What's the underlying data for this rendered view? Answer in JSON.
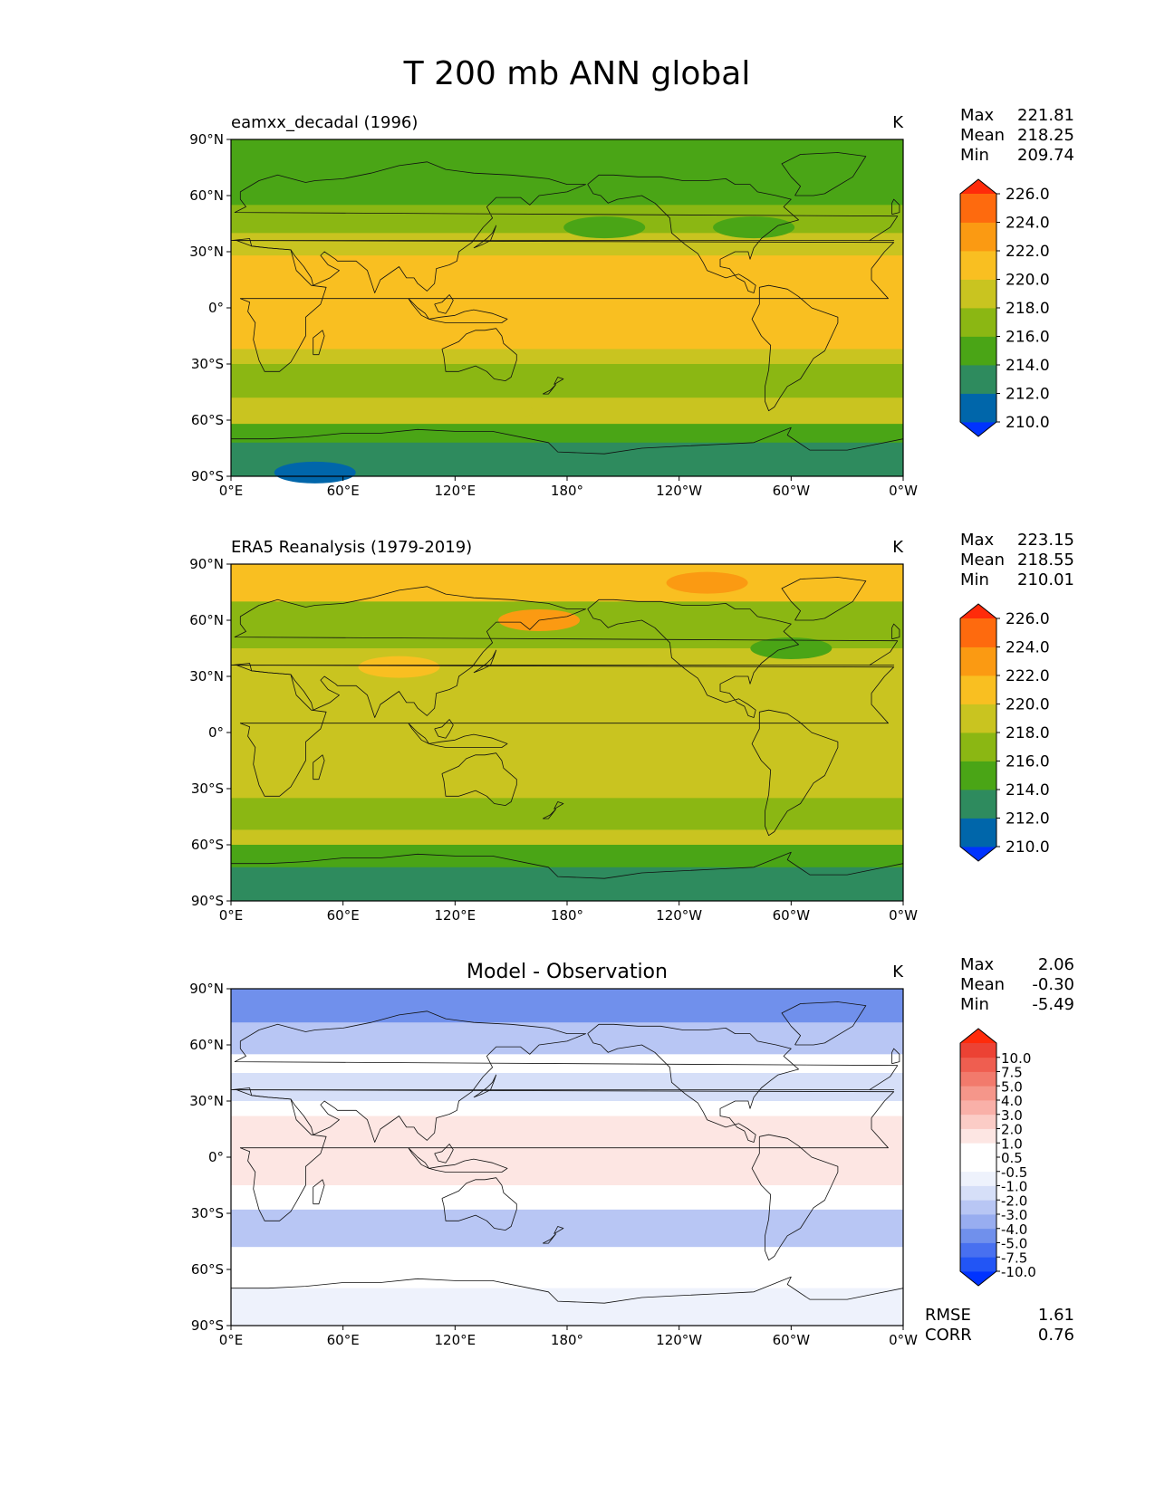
{
  "figure": {
    "title": "T 200 mb ANN global"
  },
  "axes": {
    "lat_labels": [
      "90°N",
      "60°N",
      "30°N",
      "0°",
      "30°S",
      "60°S",
      "90°S"
    ],
    "lon_labels": [
      "0°E",
      "60°E",
      "120°E",
      "180°",
      "120°W",
      "60°W",
      "0°W"
    ]
  },
  "panels": [
    {
      "id": "model",
      "title": "eamxx_decadal (1996)",
      "units": "K",
      "stats": [
        {
          "label": "Max",
          "value": "221.81"
        },
        {
          "label": "Mean",
          "value": "218.25"
        },
        {
          "label": "Min",
          "value": "209.74"
        }
      ]
    },
    {
      "id": "obs",
      "title": "ERA5 Reanalysis (1979-2019)",
      "units": "K",
      "stats": [
        {
          "label": "Max",
          "value": "223.15"
        },
        {
          "label": "Mean",
          "value": "218.55"
        },
        {
          "label": "Min",
          "value": "210.01"
        }
      ]
    },
    {
      "id": "diff",
      "title": "Model - Observation",
      "units": "K",
      "stats": [
        {
          "label": "Max",
          "value": "2.06"
        },
        {
          "label": "Mean",
          "value": "-0.30"
        },
        {
          "label": "Min",
          "value": "-5.49"
        }
      ],
      "metrics": [
        {
          "label": "RMSE",
          "value": "1.61"
        },
        {
          "label": "CORR",
          "value": "0.76"
        }
      ]
    }
  ],
  "colorbars": {
    "abs": {
      "colors": [
        "#0033ff",
        "#0066aa",
        "#2e8b5e",
        "#4aa516",
        "#8bb713",
        "#c9c420",
        "#f9bf21",
        "#fb9a12",
        "#fe6a0e",
        "#ff2b0a"
      ],
      "tick_labels": [
        "210.0",
        "212.0",
        "214.0",
        "216.0",
        "218.0",
        "220.0",
        "222.0",
        "224.0",
        "226.0"
      ]
    },
    "diff": {
      "colors": [
        "#0033ff",
        "#2255f5",
        "#4870f0",
        "#7090ec",
        "#98adf0",
        "#b8c6f4",
        "#d6dff8",
        "#eef2fc",
        "#ffffff",
        "#ffffff",
        "#fde6e3",
        "#fbccc6",
        "#f9b0a8",
        "#f5968a",
        "#f27a6c",
        "#ef5e50",
        "#ec4234",
        "#ff2b0a"
      ],
      "tick_labels": [
        "-10.0",
        "-7.5",
        "-5.0",
        "-4.0",
        "-3.0",
        "-2.0",
        "-1.0",
        "-0.5",
        "0.5",
        "1.0",
        "2.0",
        "3.0",
        "4.0",
        "5.0",
        "7.5",
        "10.0"
      ]
    }
  },
  "chart_data": [
    {
      "type": "heatmap",
      "title": "eamxx_decadal (1996)",
      "variable": "T 200 mb ANN global",
      "units": "K",
      "x_range": [
        0,
        360
      ],
      "y_range": [
        -90,
        90
      ],
      "levels": [
        210,
        212,
        214,
        216,
        218,
        220,
        222,
        224,
        226
      ],
      "zonal_mean_bands": [
        {
          "lat": [
            75,
            90
          ],
          "value": 215
        },
        {
          "lat": [
            55,
            75
          ],
          "value": 215
        },
        {
          "lat": [
            40,
            55
          ],
          "value": 217
        },
        {
          "lat": [
            28,
            40
          ],
          "value": 219
        },
        {
          "lat": [
            -22,
            28
          ],
          "value": 221
        },
        {
          "lat": [
            -30,
            -22
          ],
          "value": 219
        },
        {
          "lat": [
            -48,
            -30
          ],
          "value": 217
        },
        {
          "lat": [
            -62,
            -48
          ],
          "value": 219
        },
        {
          "lat": [
            -72,
            -62
          ],
          "value": 215
        },
        {
          "lat": [
            -90,
            -72
          ],
          "value": 212
        }
      ],
      "anomalies": [
        {
          "lon": 200,
          "lat": 43,
          "value": 215,
          "note": "N. Pacific minimum"
        },
        {
          "lon": 280,
          "lat": 43,
          "value": 215,
          "note": "N. Atlantic minimum"
        },
        {
          "lon": 45,
          "lat": -88,
          "value": 210,
          "note": "Antarctic minimum"
        },
        {
          "lon": 140,
          "lat": -55,
          "value": 219,
          "note": "Southern Ocean warm band"
        }
      ]
    },
    {
      "type": "heatmap",
      "title": "ERA5 Reanalysis (1979-2019)",
      "variable": "T 200 mb ANN global",
      "units": "K",
      "x_range": [
        0,
        360
      ],
      "y_range": [
        -90,
        90
      ],
      "levels": [
        210,
        212,
        214,
        216,
        218,
        220,
        222,
        224,
        226
      ],
      "zonal_mean_bands": [
        {
          "lat": [
            70,
            90
          ],
          "value": 221
        },
        {
          "lat": [
            45,
            70
          ],
          "value": 217
        },
        {
          "lat": [
            30,
            45
          ],
          "value": 219
        },
        {
          "lat": [
            -20,
            30
          ],
          "value": 219
        },
        {
          "lat": [
            -35,
            -20
          ],
          "value": 219
        },
        {
          "lat": [
            -52,
            -35
          ],
          "value": 217
        },
        {
          "lat": [
            -60,
            -52
          ],
          "value": 219
        },
        {
          "lat": [
            -72,
            -60
          ],
          "value": 215
        },
        {
          "lat": [
            -90,
            -72
          ],
          "value": 213
        }
      ],
      "anomalies": [
        {
          "lon": 255,
          "lat": 80,
          "value": 223,
          "note": "Arctic Canada maximum"
        },
        {
          "lon": 165,
          "lat": 60,
          "value": 223,
          "note": "Bering maximum"
        },
        {
          "lon": 90,
          "lat": 35,
          "value": 221,
          "note": "Tibetan plateau warm"
        },
        {
          "lon": 300,
          "lat": 45,
          "value": 215,
          "note": "N. Atlantic minimum"
        }
      ]
    },
    {
      "type": "heatmap",
      "title": "Model - Observation",
      "units": "K",
      "x_range": [
        0,
        360
      ],
      "y_range": [
        -90,
        90
      ],
      "levels": [
        -10,
        -7.5,
        -5,
        -4,
        -3,
        -2,
        -1,
        -0.5,
        0.5,
        1,
        2,
        3,
        4,
        5,
        7.5,
        10
      ],
      "zonal_mean_bands": [
        {
          "lat": [
            72,
            90
          ],
          "value": -4.5
        },
        {
          "lat": [
            55,
            72
          ],
          "value": -2.5
        },
        {
          "lat": [
            45,
            55
          ],
          "value": 0
        },
        {
          "lat": [
            30,
            45
          ],
          "value": -1.5
        },
        {
          "lat": [
            22,
            30
          ],
          "value": 0
        },
        {
          "lat": [
            -15,
            22
          ],
          "value": 1.5
        },
        {
          "lat": [
            -28,
            -15
          ],
          "value": 0
        },
        {
          "lat": [
            -48,
            -28
          ],
          "value": -2.5
        },
        {
          "lat": [
            -70,
            -48
          ],
          "value": 0
        },
        {
          "lat": [
            -90,
            -70
          ],
          "value": -0.7
        }
      ]
    }
  ]
}
